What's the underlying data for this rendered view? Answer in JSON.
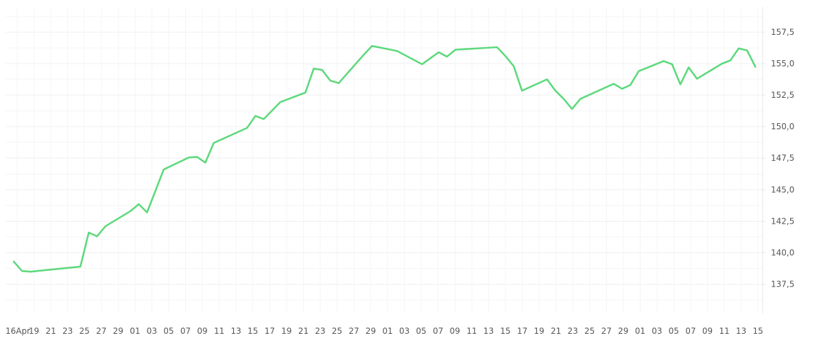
{
  "chart_data": {
    "type": "line",
    "title": "",
    "xlabel": "",
    "ylabel": "",
    "grid": true,
    "legend": "none",
    "colors": {
      "line": "#5dd97c",
      "grid": "#efefef",
      "text": "#555555"
    },
    "ylim": [
      135.2,
      159.5
    ],
    "y_ticks": [
      "137,5",
      "140,0",
      "142,5",
      "145,0",
      "147,5",
      "150,0",
      "152,5",
      "155,0",
      "157,5"
    ],
    "x_ticks": [
      "16Apr",
      "19",
      "21",
      "23",
      "25",
      "27",
      "29",
      "01",
      "03",
      "05",
      "07",
      "09",
      "11",
      "13",
      "15",
      "17",
      "19",
      "21",
      "23",
      "25",
      "27",
      "29",
      "01",
      "03",
      "05",
      "07",
      "09",
      "11",
      "13",
      "15",
      "17",
      "19",
      "21",
      "23",
      "25",
      "27",
      "29",
      "01",
      "03",
      "05",
      "07",
      "09",
      "11",
      "13",
      "15"
    ],
    "series": [
      {
        "points": [
          [
            0,
            139.3
          ],
          [
            1,
            138.55
          ],
          [
            2,
            138.5
          ],
          [
            8,
            138.9
          ],
          [
            9,
            141.6
          ],
          [
            10,
            141.3
          ],
          [
            11,
            142.1
          ],
          [
            14,
            143.3
          ],
          [
            15,
            143.85
          ],
          [
            16,
            143.2
          ],
          [
            18,
            146.6
          ],
          [
            21,
            147.55
          ],
          [
            22,
            147.6
          ],
          [
            23,
            147.15
          ],
          [
            24,
            148.7
          ],
          [
            28,
            149.9
          ],
          [
            29,
            150.85
          ],
          [
            30,
            150.6
          ],
          [
            32,
            151.95
          ],
          [
            35,
            152.7
          ],
          [
            36,
            154.6
          ],
          [
            37,
            154.5
          ],
          [
            38,
            153.65
          ],
          [
            39,
            153.45
          ],
          [
            42,
            155.7
          ],
          [
            43,
            156.4
          ],
          [
            46,
            156.0
          ],
          [
            49,
            154.95
          ],
          [
            51,
            155.9
          ],
          [
            52,
            155.55
          ],
          [
            53,
            156.1
          ],
          [
            58,
            156.3
          ],
          [
            59,
            155.6
          ],
          [
            60,
            154.8
          ],
          [
            61,
            152.85
          ],
          [
            64,
            153.75
          ],
          [
            65,
            152.85
          ],
          [
            66,
            152.2
          ],
          [
            67,
            151.4
          ],
          [
            68,
            152.2
          ],
          [
            72,
            153.4
          ],
          [
            73,
            153.0
          ],
          [
            74,
            153.3
          ],
          [
            75,
            154.4
          ],
          [
            78,
            155.2
          ],
          [
            79,
            154.95
          ],
          [
            80,
            153.35
          ],
          [
            81,
            154.7
          ],
          [
            82,
            153.8
          ],
          [
            85,
            155.0
          ],
          [
            86,
            155.25
          ],
          [
            87,
            156.2
          ],
          [
            88,
            156.05
          ],
          [
            89,
            154.75
          ]
        ]
      }
    ]
  }
}
